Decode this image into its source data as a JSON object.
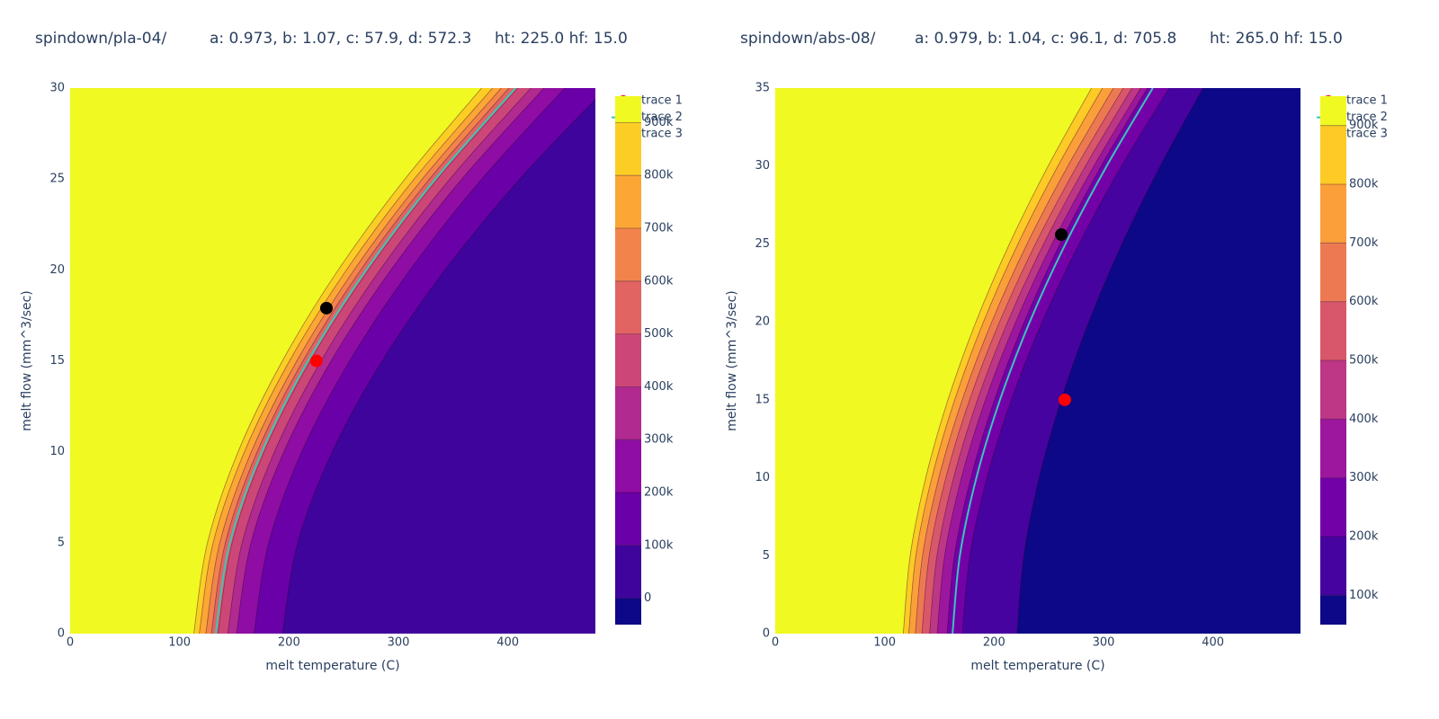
{
  "chart_data": [
    {
      "type": "contour",
      "title_parts": [
        "spindown/pla-04/",
        "a: 0.973, b: 1.07, c: 57.9, d: 572.3",
        "ht: 225.0 hf: 15.0"
      ],
      "x_label": "melt temperature (C)",
      "y_label": "melt flow (mm^3/sec)",
      "xlim": [
        0,
        480
      ],
      "ylim": [
        0,
        30
      ],
      "xticks": [
        0,
        100,
        200,
        300,
        400
      ],
      "yticks": [
        0,
        5,
        10,
        15,
        20,
        25,
        30
      ],
      "contour_y": [
        0,
        5,
        10,
        15,
        20,
        25,
        30
      ],
      "contours": [
        {
          "level": 100000,
          "x": [
            194,
            208,
            239.6,
            285.2,
            342.6,
            411,
            490
          ]
        },
        {
          "level": 200000,
          "x": [
            168,
            181.5,
            211.7,
            255.5,
            310.6,
            376.2,
            452
          ]
        },
        {
          "level": 300000,
          "x": [
            152,
            165.3,
            195.3,
            238.5,
            293.1,
            358,
            433
          ]
        },
        {
          "level": 400000,
          "x": [
            144,
            157.2,
            186.7,
            229.3,
            283.1,
            347,
            421
          ]
        },
        {
          "level": 500000,
          "x": [
            135,
            148,
            177.2,
            219.4,
            272.5,
            335.8,
            409
          ]
        },
        {
          "level": 600000,
          "x": [
            129,
            141.9,
            170.9,
            212.8,
            265.5,
            328.4,
            401
          ]
        },
        {
          "level": 700000,
          "x": [
            124,
            136.8,
            165.6,
            207.2,
            259.5,
            321.9,
            394
          ]
        },
        {
          "level": 800000,
          "x": [
            118,
            130.7,
            159.3,
            200.5,
            252.5,
            314.4,
            386
          ]
        },
        {
          "level": 900000,
          "x": [
            113,
            125.5,
            153.5,
            194,
            245,
            306,
            376
          ]
        }
      ],
      "colorbar": {
        "lim": [
          -50000,
          950000
        ],
        "ticks": [
          0,
          {
            "value": 100000,
            "label": "100k"
          },
          {
            "value": 200000,
            "label": "200k"
          },
          {
            "value": 300000,
            "label": "300k"
          },
          {
            "value": 400000,
            "label": "400k"
          },
          {
            "value": 500000,
            "label": "500k"
          },
          {
            "value": 600000,
            "label": "600k"
          },
          {
            "value": 700000,
            "label": "700k"
          },
          {
            "value": 800000,
            "label": "800k"
          },
          {
            "value": 900000,
            "label": "900k"
          }
        ],
        "colors": [
          "#0d0887",
          "#3e049c",
          "#6a00a8",
          "#8f0da4",
          "#b12a90",
          "#cc4778",
          "#e16462",
          "#f2844b",
          "#fca636",
          "#fcce25",
          "#f0f921"
        ]
      },
      "series": [
        {
          "name": "trace 1",
          "mode": "markers",
          "color": "#ff0000",
          "x": [
            225
          ],
          "y": [
            15
          ]
        },
        {
          "name": "trace 2",
          "mode": "lines",
          "color": "#3cc4bc",
          "x": [
            133,
            146,
            175.2,
            217.4,
            270.5,
            333.8,
            407
          ],
          "y": [
            0,
            5,
            10,
            15,
            20,
            25,
            30
          ]
        },
        {
          "name": "trace 3",
          "mode": "markers",
          "color": "#000000",
          "x": [
            234.2
          ],
          "y": [
            17.9
          ]
        }
      ]
    },
    {
      "type": "contour",
      "title_parts": [
        "spindown/abs-08/",
        "a: 0.979, b: 1.04, c: 96.1, d: 705.8",
        "ht: 265.0 hf: 15.0"
      ],
      "x_label": "melt temperature (C)",
      "y_label": "melt flow (mm^3/sec)",
      "xlim": [
        0,
        480
      ],
      "ylim": [
        0,
        35
      ],
      "xticks": [
        0,
        100,
        200,
        300,
        400
      ],
      "yticks": [
        0,
        5,
        10,
        15,
        20,
        25,
        30,
        35
      ],
      "contour_y": [
        0,
        5,
        10,
        15,
        20,
        25,
        30,
        35
      ],
      "contours": [
        {
          "level": 100000,
          "x": [
            221,
            227.2,
            241.2,
            261.3,
            286.6,
            316.9,
            351.9,
            391
          ]
        },
        {
          "level": 200000,
          "x": [
            171,
            177.9,
            193.5,
            215.8,
            244,
            277.6,
            316.5,
            360
          ]
        },
        {
          "level": 300000,
          "x": [
            157,
            163.7,
            178.8,
            200.4,
            227.6,
            260.2,
            297.9,
            340
          ]
        },
        {
          "level": 400000,
          "x": [
            148,
            154.8,
            170.1,
            192.1,
            219.8,
            252.9,
            291.2,
            334
          ]
        },
        {
          "level": 500000,
          "x": [
            141,
            147.8,
            163,
            184.8,
            212.4,
            245.3,
            283.5,
            326
          ]
        },
        {
          "level": 600000,
          "x": [
            134,
            140.7,
            155.9,
            177.6,
            205,
            237.8,
            275.7,
            318
          ]
        },
        {
          "level": 700000,
          "x": [
            128,
            134.6,
            149.5,
            170.9,
            197.9,
            230.1,
            267.4,
            309
          ]
        },
        {
          "level": 800000,
          "x": [
            122,
            128.5,
            143.1,
            164,
            190.3,
            221.8,
            258.3,
            299
          ]
        },
        {
          "level": 900000,
          "x": [
            117,
            123.3,
            137.5,
            157.8,
            183.4,
            214,
            249.4,
            289
          ]
        }
      ],
      "colorbar": {
        "lim": [
          50000,
          950000
        ],
        "ticks": [
          {
            "value": 100000,
            "label": "100k"
          },
          {
            "value": 200000,
            "label": "200k"
          },
          {
            "value": 300000,
            "label": "300k"
          },
          {
            "value": 400000,
            "label": "400k"
          },
          {
            "value": 500000,
            "label": "500k"
          },
          {
            "value": 600000,
            "label": "600k"
          },
          {
            "value": 700000,
            "label": "700k"
          },
          {
            "value": 800000,
            "label": "800k"
          },
          {
            "value": 900000,
            "label": "900k"
          }
        ],
        "colors": [
          "#0d0887",
          "#46039f",
          "#7201a8",
          "#9c179e",
          "#bd3786",
          "#d8576b",
          "#ed7953",
          "#fb9f3a",
          "#fdca26",
          "#f0f921"
        ]
      },
      "series": [
        {
          "name": "trace 1",
          "mode": "markers",
          "color": "#ff0000",
          "x": [
            264.6
          ],
          "y": [
            15
          ]
        },
        {
          "name": "trace 2",
          "mode": "lines",
          "color": "#3cc4bc",
          "x": [
            162,
            168.7,
            183.8,
            205.4,
            232.6,
            265.2,
            302.9,
            345
          ],
          "y": [
            0,
            5,
            10,
            15,
            20,
            25,
            30,
            35
          ]
        },
        {
          "name": "trace 3",
          "mode": "markers",
          "color": "#000000",
          "x": [
            261.4
          ],
          "y": [
            25.6
          ]
        }
      ]
    }
  ]
}
